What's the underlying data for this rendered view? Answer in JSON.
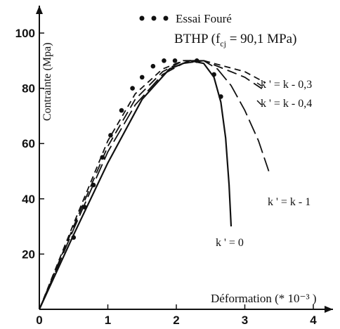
{
  "chart_data": {
    "type": "line",
    "ylabel": "Contrainte (Mpa)",
    "xlabel": "Déformation (* 10⁻³ )",
    "xlim": [
      0,
      4.25
    ],
    "ylim": [
      0,
      108
    ],
    "x_ticks": [
      "0",
      "1",
      "2",
      "3",
      "4"
    ],
    "y_ticks": [
      "20",
      "40",
      "60",
      "80",
      "100"
    ],
    "legend": {
      "marker_series": "Essai Fouré",
      "material": "BTHP (f",
      "material_sub": "cj",
      "material_value": " = 90,1 MPa)"
    },
    "series": [
      {
        "name": "Essai Fouré",
        "style": "points",
        "x": [
          0.5,
          0.66,
          0.79,
          0.92,
          1.04,
          1.2,
          1.36,
          1.5,
          1.66,
          1.82,
          1.98,
          2.3,
          2.55,
          2.65
        ],
        "y": [
          26,
          37,
          45,
          55,
          63,
          72,
          80,
          84,
          88,
          90,
          90,
          90,
          85,
          77
        ]
      },
      {
        "name": "k' = 0",
        "style": "solid",
        "x": [
          0,
          0.5,
          1.0,
          1.5,
          1.9,
          2.2,
          2.4,
          2.55,
          2.65,
          2.72,
          2.77,
          2.8
        ],
        "y": [
          0,
          27,
          53,
          76,
          87,
          90,
          89,
          84,
          75,
          62,
          45,
          30
        ]
      },
      {
        "name": "k' = k - 1",
        "style": "dashed",
        "x": [
          0,
          0.5,
          1.0,
          1.4,
          1.8,
          2.1,
          2.4,
          2.6,
          2.8,
          3.0,
          3.2,
          3.35
        ],
        "y": [
          0,
          29,
          57,
          74,
          85,
          89,
          90,
          87,
          81,
          72,
          61,
          50
        ]
      },
      {
        "name": "k' = k - 0,4",
        "style": "dashed",
        "x": [
          0,
          0.5,
          1.0,
          1.4,
          1.8,
          2.1,
          2.4,
          2.7,
          3.0,
          3.3
        ],
        "y": [
          0,
          30,
          59,
          76,
          86,
          90,
          90,
          87,
          84,
          79
        ]
      },
      {
        "name": "k' = k - 0,3",
        "style": "dashed",
        "x": [
          0,
          0.5,
          1.0,
          1.4,
          1.8,
          2.1,
          2.4,
          2.7,
          3.0,
          3.3
        ],
        "y": [
          0,
          31,
          61,
          78,
          87,
          90,
          90,
          88,
          86,
          82
        ]
      }
    ],
    "annotations": {
      "k03": "k ' = k - 0,3",
      "k04": "k ' = k - 0,4",
      "k1": "k ' = k - 1",
      "k0": "k ' = 0"
    }
  }
}
